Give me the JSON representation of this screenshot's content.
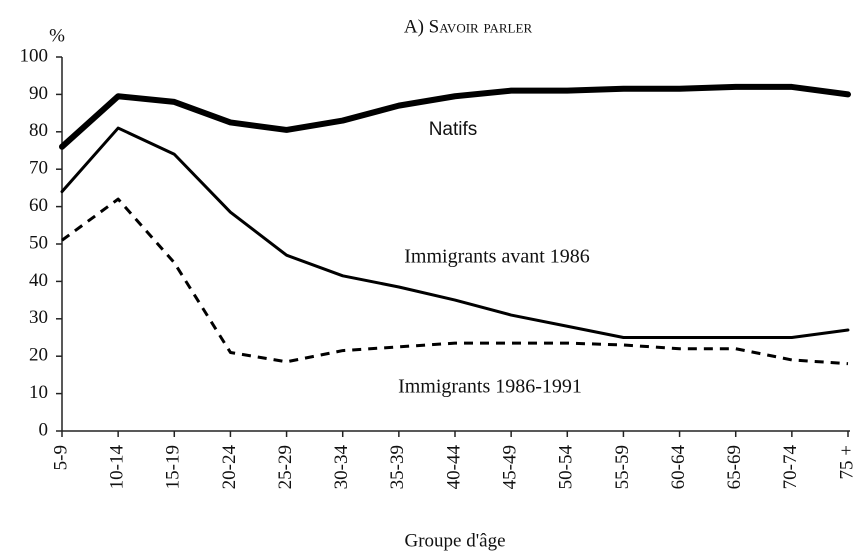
{
  "chart_data": {
    "type": "line",
    "title": "A) Savoir parler",
    "y_label": "%",
    "x_label": "Groupe d'âge",
    "categories": [
      "5-9",
      "10-14",
      "15-19",
      "20-24",
      "25-29",
      "30-34",
      "35-39",
      "40-44",
      "45-49",
      "50-54",
      "55-59",
      "60-64",
      "65-69",
      "70-74",
      "75 +"
    ],
    "series": [
      {
        "name": "Natifs",
        "color": "#000000",
        "width": 6,
        "dashed": false,
        "values": [
          76,
          89.5,
          88,
          82.5,
          80.5,
          83,
          87,
          89.5,
          91,
          91,
          91.5,
          91.5,
          92,
          92,
          90
        ]
      },
      {
        "name": "Immigrants avant 1986",
        "color": "#000000",
        "width": 3,
        "dashed": false,
        "values": [
          64,
          81,
          74,
          58.5,
          47,
          41.5,
          38.5,
          35,
          31,
          28,
          25,
          25,
          25,
          25,
          27
        ]
      },
      {
        "name": "Immigrants 1986-1991",
        "color": "#000000",
        "width": 3,
        "dashed": true,
        "values": [
          51,
          62,
          45,
          21,
          18.5,
          21.5,
          22.5,
          23.5,
          23.5,
          23.5,
          23,
          22,
          22,
          19,
          18
        ]
      }
    ],
    "ylim": [
      0,
      100
    ],
    "yticks": [
      0,
      10,
      20,
      30,
      40,
      50,
      60,
      70,
      80,
      90,
      100
    ],
    "grid": false
  }
}
